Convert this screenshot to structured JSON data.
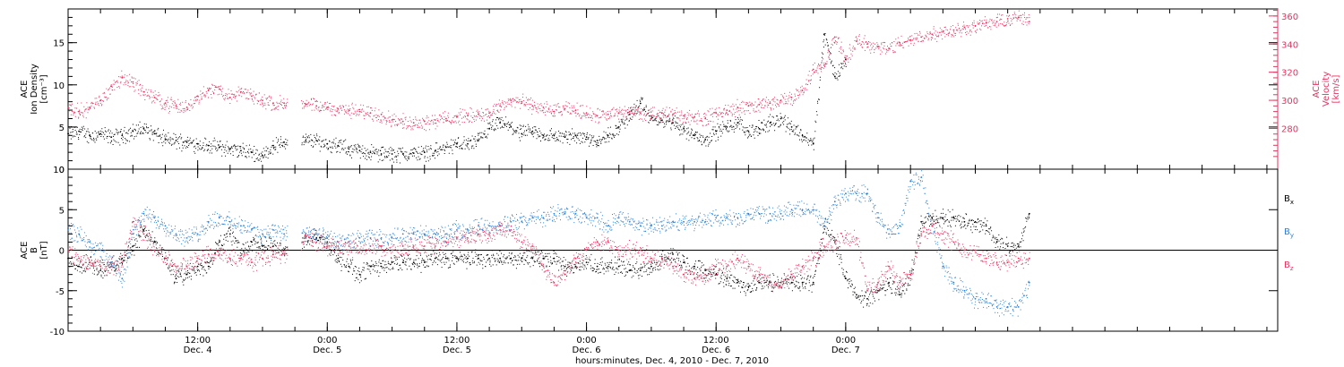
{
  "chart_data": [
    {
      "type": "scatter",
      "panel": "top",
      "left_axis": {
        "label_lines": [
          "ACE",
          "Ion Density",
          "[cm⁻³]"
        ],
        "range": [
          0,
          19
        ],
        "ticks": [
          0,
          5,
          10,
          15
        ],
        "tick_labels": [
          "0",
          "5",
          "10",
          "15"
        ],
        "color": "#000000"
      },
      "right_axis": {
        "label_lines": [
          "ACE",
          "Velocity",
          "[km/s]"
        ],
        "range": [
          251,
          365
        ],
        "ticks": [
          280,
          300,
          320,
          340,
          360
        ],
        "tick_labels": [
          "280",
          "300",
          "320",
          "340",
          "360"
        ],
        "color": "#e8325f"
      },
      "series": [
        {
          "key": "density",
          "axis": "left",
          "color": "#000000",
          "x": [
            0,
            1,
            2,
            3,
            4,
            5,
            6,
            7,
            8,
            9,
            10,
            11,
            12,
            13,
            14,
            15,
            16,
            17,
            18,
            19,
            20,
            21,
            22,
            23,
            24,
            25,
            26,
            27,
            28,
            29,
            30,
            31,
            32,
            33,
            34,
            35,
            36,
            37,
            38,
            39,
            40,
            41,
            42,
            43,
            44,
            45,
            46,
            47,
            48,
            49,
            50,
            51,
            52,
            53,
            54,
            55,
            56,
            57,
            58,
            59,
            60,
            61,
            62,
            63,
            64,
            65,
            66,
            67,
            68,
            69,
            70,
            71,
            72
          ],
          "y": [
            4.2,
            4.5,
            4.0,
            4.2,
            3.8,
            4.0,
            4.5,
            4.8,
            4.2,
            3.5,
            3.4,
            3.2,
            3.0,
            2.8,
            2.6,
            2.4,
            2.2,
            2.0,
            1.6,
            2.8,
            3.2,
            3.4,
            3.4,
            3.4,
            3.0,
            2.8,
            2.4,
            2.2,
            2.0,
            1.8,
            1.8,
            1.8,
            1.9,
            2.0,
            2.2,
            2.6,
            3.0,
            3.0,
            3.4,
            4.8,
            5.5,
            5.0,
            4.2,
            4.5,
            4.0,
            4.0,
            3.8,
            4.0,
            3.8,
            3.4,
            4.0,
            5.0,
            6.5,
            7.8,
            6.0,
            5.8,
            5.5,
            4.8,
            4.0,
            3.5,
            4.5,
            5.0,
            5.5,
            4.5,
            4.8,
            5.5,
            6.0,
            5.0,
            4.0,
            3.0,
            16.0,
            11.0,
            13.0
          ]
        },
        {
          "key": "velocity",
          "axis": "right",
          "color": "#e8325f",
          "x": [
            0,
            1,
            2,
            3,
            4,
            5,
            6,
            7,
            8,
            9,
            10,
            11,
            12,
            13,
            14,
            15,
            16,
            17,
            18,
            19,
            20,
            21,
            22,
            23,
            24,
            25,
            26,
            27,
            28,
            29,
            30,
            31,
            32,
            33,
            34,
            35,
            36,
            37,
            38,
            39,
            40,
            41,
            42,
            43,
            44,
            45,
            46,
            47,
            48,
            49,
            50,
            51,
            52,
            53,
            54,
            55,
            56,
            57,
            58,
            59,
            60,
            61,
            62,
            63,
            64,
            65,
            66,
            67,
            68,
            69,
            70,
            71,
            72,
            73,
            74,
            75,
            76,
            77,
            78,
            79,
            80,
            81,
            82,
            83,
            84,
            85,
            86,
            87,
            88,
            89
          ],
          "y": [
            295,
            292,
            295,
            300,
            310,
            316,
            313,
            306,
            302,
            298,
            296,
            295,
            303,
            307,
            308,
            302,
            306,
            303,
            300,
            298,
            298,
            297,
            297,
            296,
            295,
            294,
            293,
            292,
            291,
            290,
            286,
            285,
            284,
            285,
            286,
            287,
            288,
            289,
            290,
            291,
            296,
            300,
            299,
            296,
            295,
            292,
            294,
            293,
            291,
            289,
            290,
            291,
            292,
            291,
            289,
            291,
            290,
            289,
            288,
            287,
            291,
            293,
            295,
            296,
            297,
            298,
            300,
            302,
            307,
            322,
            325,
            345,
            330,
            342,
            340,
            338,
            337,
            341,
            343,
            345,
            347,
            349,
            350,
            352,
            353,
            355,
            356,
            358,
            359,
            356
          ]
        }
      ],
      "gaps_hours": [
        [
          20.3,
          21.6
        ]
      ]
    },
    {
      "type": "scatter",
      "panel": "bottom",
      "left_axis": {
        "label_lines": [
          "ACE",
          "B",
          "[nT]"
        ],
        "range": [
          -10,
          10
        ],
        "ticks": [
          -10,
          -5,
          0,
          5,
          10
        ],
        "tick_labels": [
          "-10",
          "-5",
          "0",
          "5",
          "10"
        ],
        "color": "#000000"
      },
      "zero_line": true,
      "series": [
        {
          "key": "bx",
          "label": "B",
          "subscript": "x",
          "color": "#000000",
          "x": [
            0,
            1,
            2,
            3,
            4,
            5,
            6,
            7,
            8,
            9,
            10,
            11,
            12,
            13,
            14,
            15,
            16,
            17,
            18,
            19,
            20,
            21,
            22,
            23,
            24,
            25,
            26,
            27,
            28,
            29,
            30,
            31,
            32,
            33,
            34,
            35,
            36,
            37,
            38,
            39,
            40,
            41,
            42,
            43,
            44,
            45,
            46,
            47,
            48,
            49,
            50,
            51,
            52,
            53,
            54,
            55,
            56,
            57,
            58,
            59,
            60,
            61,
            62,
            63,
            64,
            65,
            66,
            67,
            68,
            69,
            70,
            71,
            72,
            73,
            74,
            75,
            76,
            77,
            78,
            79,
            80,
            81,
            82,
            83,
            84,
            85,
            86,
            87,
            88,
            89
          ],
          "y": [
            -1,
            -2,
            -1.5,
            -2.5,
            -2,
            -1,
            0.5,
            2.5,
            1,
            -1,
            -3.5,
            -3,
            -2,
            -2,
            1,
            2,
            0,
            1,
            0.5,
            0.5,
            0,
            0,
            1.5,
            1.5,
            1,
            -1,
            -2,
            -3,
            -2,
            -2,
            -1.5,
            -1.5,
            -1.5,
            -1.5,
            -1,
            -1,
            -1,
            -1,
            -1,
            -1,
            -1,
            -1,
            -1,
            -1,
            -1,
            -1,
            -2,
            -2,
            -1.5,
            -2,
            -2,
            -2,
            -2.5,
            -2.5,
            -2,
            -1,
            -0.5,
            -1.5,
            -2,
            -2.5,
            -3,
            -3.5,
            -4,
            -4.5,
            -4,
            -4,
            -4,
            -4,
            -4,
            -4,
            3,
            1,
            -3.5,
            -5.5,
            -6,
            -5,
            -4,
            -5.5,
            -3,
            3.5,
            4,
            4,
            4,
            3.5,
            3.5,
            3,
            1,
            0.5,
            0.5,
            4.5
          ]
        },
        {
          "key": "by",
          "label": "B",
          "subscript": "y",
          "color": "#2c7fd6",
          "x": [
            0,
            1,
            2,
            3,
            4,
            5,
            6,
            7,
            8,
            9,
            10,
            11,
            12,
            13,
            14,
            15,
            16,
            17,
            18,
            19,
            20,
            21,
            22,
            23,
            24,
            25,
            26,
            27,
            28,
            29,
            30,
            31,
            32,
            33,
            34,
            35,
            36,
            37,
            38,
            39,
            40,
            41,
            42,
            43,
            44,
            45,
            46,
            47,
            48,
            49,
            50,
            51,
            52,
            53,
            54,
            55,
            56,
            57,
            58,
            59,
            60,
            61,
            62,
            63,
            64,
            65,
            66,
            67,
            68,
            69,
            70,
            71,
            72,
            73,
            74,
            75,
            76,
            77,
            78,
            79,
            80,
            81,
            82,
            83,
            84,
            85,
            86,
            87,
            88,
            89
          ],
          "y": [
            2.5,
            2,
            1,
            0,
            -1.5,
            -3.5,
            2,
            4.5,
            4,
            3,
            2,
            1.5,
            2,
            3.5,
            4,
            3.5,
            3,
            2.5,
            2,
            2.5,
            2,
            2,
            2,
            2,
            1.5,
            1,
            1,
            1.5,
            1.5,
            1.5,
            1.5,
            2,
            2,
            2,
            2,
            2,
            2.5,
            2.5,
            3,
            3,
            3,
            3.5,
            3.5,
            4,
            4,
            4.5,
            4.5,
            4.5,
            4,
            4,
            3,
            4,
            3.5,
            3,
            3,
            3,
            3.5,
            3.5,
            3.5,
            3.5,
            4,
            4,
            4,
            4.5,
            4.5,
            4.5,
            4.5,
            5,
            5,
            5,
            3,
            6,
            7,
            7,
            7,
            4,
            2,
            3,
            8.5,
            9,
            3,
            -2,
            -4,
            -5,
            -6,
            -6,
            -7,
            -7,
            -7,
            -4
          ]
        },
        {
          "key": "bz",
          "label": "B",
          "subscript": "z",
          "color": "#e8325f",
          "x": [
            0,
            1,
            2,
            3,
            4,
            5,
            6,
            7,
            8,
            9,
            10,
            11,
            12,
            13,
            14,
            15,
            16,
            17,
            18,
            19,
            20,
            21,
            22,
            23,
            24,
            25,
            26,
            27,
            28,
            29,
            30,
            31,
            32,
            33,
            34,
            35,
            36,
            37,
            38,
            39,
            40,
            41,
            42,
            43,
            44,
            45,
            46,
            47,
            48,
            49,
            50,
            51,
            52,
            53,
            54,
            55,
            56,
            57,
            58,
            59,
            60,
            61,
            62,
            63,
            64,
            65,
            66,
            67,
            68,
            69,
            70,
            71,
            72,
            73,
            74,
            75,
            76,
            77,
            78,
            79,
            80,
            81,
            82,
            83,
            84,
            85,
            86,
            87,
            88,
            89
          ],
          "y": [
            0,
            -1,
            -1.5,
            -2,
            -2,
            -1.5,
            3.5,
            2,
            0,
            -1,
            -2,
            -2,
            -1,
            -0.5,
            -0.5,
            -1,
            -1,
            -1.5,
            -1,
            -0.5,
            -0.5,
            -0.5,
            1.5,
            1,
            0.5,
            0.5,
            0.5,
            0,
            0.5,
            0.5,
            0,
            0.5,
            0.5,
            0.5,
            0.5,
            1,
            1.5,
            1.5,
            2,
            2,
            2.5,
            2.5,
            1,
            0.5,
            -2,
            -4,
            -3,
            -1,
            0,
            1,
            1,
            0,
            0,
            0,
            -1,
            -1,
            -2,
            -3,
            -3.5,
            -3,
            -2,
            -2,
            -1,
            -2,
            -3,
            -4,
            -4,
            -3,
            -2,
            -1,
            0.5,
            1,
            1.5,
            1.5,
            -5,
            -4,
            -2,
            -4,
            -3,
            2,
            3,
            2,
            1,
            0,
            0,
            -1,
            -1.5,
            -1.5,
            -1,
            -1
          ]
        }
      ]
    }
  ],
  "time_axis": {
    "label": "hours:minutes, Dec.  4, 2010 - Dec.  7, 2010",
    "range_hours": [
      0,
      112
    ],
    "ticks": [
      {
        "hour": 12,
        "time": "12:00",
        "date": "Dec. 4"
      },
      {
        "hour": 24,
        "time": "0:00",
        "date": "Dec. 5"
      },
      {
        "hour": 36,
        "time": "12:00",
        "date": "Dec. 5"
      },
      {
        "hour": 48,
        "time": "0:00",
        "date": "Dec. 6"
      },
      {
        "hour": 60,
        "time": "12:00",
        "date": "Dec. 6"
      },
      {
        "hour": 72,
        "time": "0:00",
        "date": "Dec. 7"
      }
    ],
    "minor_tick_hours": 3
  },
  "colors": {
    "black": "#000000",
    "blue": "#2c7fd6",
    "pink": "#e8325f"
  }
}
